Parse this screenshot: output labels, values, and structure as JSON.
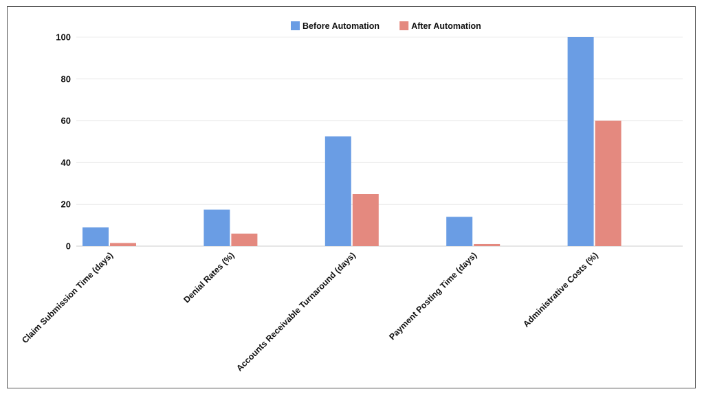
{
  "chart_data": {
    "type": "bar",
    "categories": [
      "Claim Submission Time (days)",
      "Denial Rates (%)",
      "Accounts Receivable Turnaround (days)",
      "Payment Posting Time (days)",
      "Administrative Costs (%)"
    ],
    "series": [
      {
        "name": "Before Automation",
        "color": "#6a9de4",
        "values": [
          9,
          17.5,
          52.5,
          14,
          100
        ]
      },
      {
        "name": "After Automation",
        "color": "#e4897f",
        "values": [
          1.5,
          6,
          25,
          1,
          60
        ]
      }
    ],
    "ylim": [
      0,
      100
    ],
    "yticks": [
      0,
      20,
      40,
      60,
      80,
      100
    ],
    "grid": true,
    "legend_position": "top-center"
  }
}
